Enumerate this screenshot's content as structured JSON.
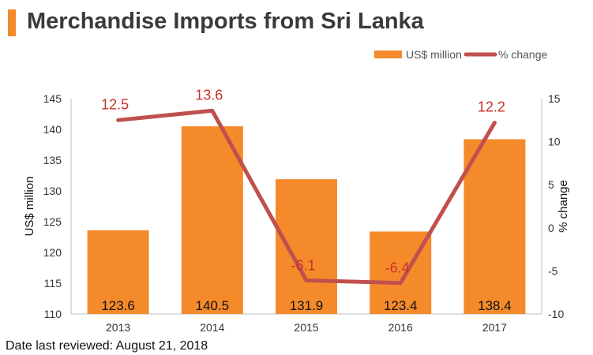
{
  "title": "Merchandise Imports from Sri Lanka",
  "footer": "Date last reviewed: August 21, 2018",
  "colors": {
    "bar": "#f58a2b",
    "line": "#c0504d",
    "accent": "#f58a2b",
    "line_label": "#c8312b"
  },
  "chart_data": {
    "type": "bar",
    "categories": [
      "2013",
      "2014",
      "2015",
      "2016",
      "2017"
    ],
    "series": [
      {
        "name": "US$ million",
        "type": "bar",
        "axis": "left",
        "values": [
          123.6,
          140.5,
          131.9,
          123.4,
          138.4
        ],
        "labels": [
          "123.6",
          "140.5",
          "131.9",
          "123.4",
          "138.4"
        ]
      },
      {
        "name": "% change",
        "type": "line",
        "axis": "right",
        "values": [
          12.5,
          13.6,
          -6.1,
          -6.4,
          12.2
        ],
        "labels": [
          "12.5",
          "13.6",
          "-6.1",
          "-6.4",
          "12.2"
        ]
      }
    ],
    "ylabel": "US$ million",
    "y2label": "% change",
    "ylim": [
      110,
      145
    ],
    "y2lim": [
      -10,
      15
    ],
    "yticks": [
      "110",
      "115",
      "120",
      "125",
      "130",
      "135",
      "140",
      "145"
    ],
    "y2ticks": [
      "-10",
      "-5",
      "0",
      "5",
      "10",
      "15"
    ],
    "legend": "top-right",
    "grid": false
  }
}
